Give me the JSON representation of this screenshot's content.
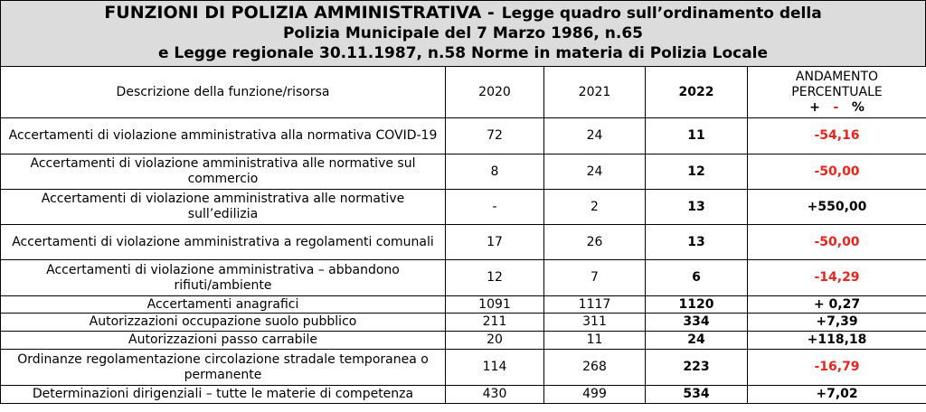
{
  "title": {
    "heading": "FUNZIONI DI POLIZIA AMMINISTRATIVA -",
    "lines": [
      "Legge quadro sull’ordinamento della",
      "Polizia Municipale del 7 Marzo 1986, n.65",
      "e Legge regionale 30.11.1987, n.58 Norme in materia di Polizia Locale"
    ]
  },
  "table": {
    "header": {
      "description": "Descrizione della funzione/risorsa",
      "years": [
        "2020",
        "2021",
        "2022"
      ],
      "trend": {
        "lines": [
          "ANDAMENTO",
          "PERCENTUALE"
        ],
        "plus": "+",
        "minus": "-",
        "percent": "%"
      }
    },
    "rows": [
      [
        "Accertamenti di violazione amministrativa alla normativa COVID-19",
        "72",
        "24",
        "11",
        "-54,16"
      ],
      [
        "Accertamenti di violazione amministrativa alle normative sul commercio",
        "8",
        "24",
        "12",
        "-50,00"
      ],
      [
        "Accertamenti di violazione amministrativa alle normative sull’edilizia",
        "-",
        "2",
        "13",
        "+550,00"
      ],
      [
        "Accertamenti di violazione amministrativa a regolamenti comunali",
        "17",
        "26",
        "13",
        "-50,00"
      ],
      [
        "Accertamenti di violazione amministrativa – abbandono rifiuti/ambiente",
        "12",
        "7",
        "6",
        "-14,29"
      ],
      [
        "Accertamenti anagrafici",
        "1091",
        "1117",
        "1120",
        "+ 0,27"
      ],
      [
        "Autorizzazioni occupazione suolo pubblico",
        "211",
        "311",
        "334",
        "+7,39"
      ],
      [
        "Autorizzazioni passo carrabile",
        "20",
        "11",
        "24",
        "+118,18"
      ],
      [
        "Ordinanze regolamentazione circolazione stradale temporanea o permanente",
        "114",
        "268",
        "223",
        "-16,79"
      ],
      [
        "Determinazioni dirigenziali – tutte le materie di competenza",
        "430",
        "499",
        "534",
        "+7,02"
      ]
    ]
  }
}
